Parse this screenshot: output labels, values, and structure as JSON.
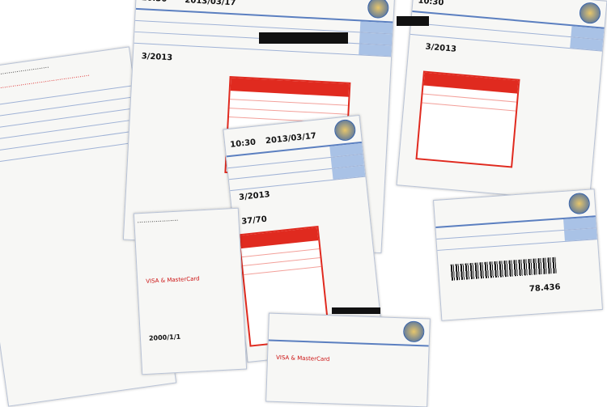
{
  "bills": [
    {
      "date": "2013/03/17",
      "time": "10:30",
      "month": "3/2013",
      "amount": "78.436",
      "ratio": "37/70",
      "since": "2000/1/1",
      "payment": "VISA & MasterCard"
    }
  ],
  "colors": {
    "accent_blue": "#5b7fc0",
    "alert_red": "#e02a1f"
  }
}
